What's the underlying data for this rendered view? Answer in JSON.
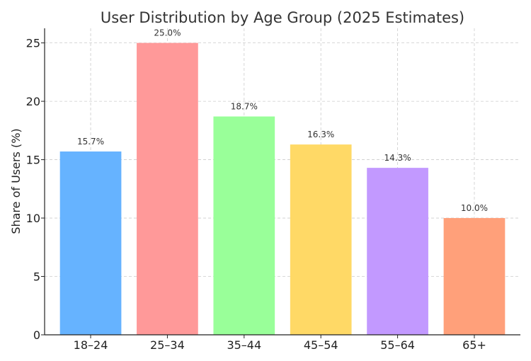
{
  "chart_data": {
    "type": "bar",
    "title": "User Distribution by Age Group (2025 Estimates)",
    "xlabel": "",
    "ylabel": "Share of Users (%)",
    "categories": [
      "18–24",
      "25–34",
      "35–44",
      "45–54",
      "55–64",
      "65+"
    ],
    "values": [
      15.7,
      25.0,
      18.7,
      16.3,
      14.3,
      10.0
    ],
    "data_labels": [
      "15.7%",
      "25.0%",
      "18.7%",
      "16.3%",
      "14.3%",
      "10.0%"
    ],
    "colors": [
      "#66b3ff",
      "#ff9999",
      "#99ff99",
      "#ffd966",
      "#c299ff",
      "#ffa07a"
    ],
    "ylim": [
      0,
      26.25
    ],
    "yticks": [
      0,
      5,
      10,
      15,
      20,
      25
    ],
    "grid": true,
    "legend": "none"
  }
}
